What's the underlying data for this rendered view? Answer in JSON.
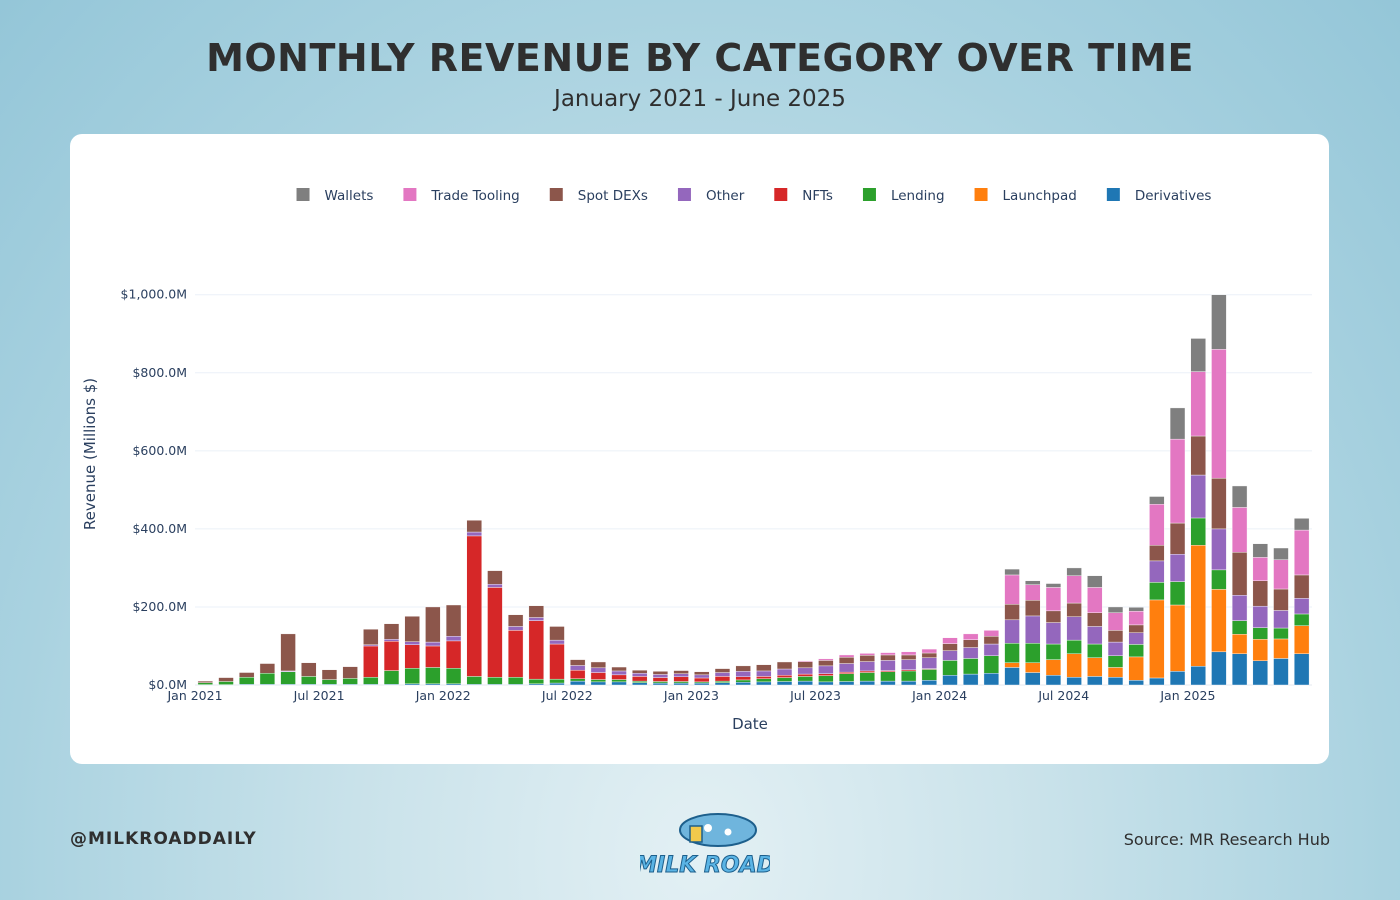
{
  "header": {
    "title": "MONTHLY REVENUE BY CATEGORY OVER TIME",
    "subtitle": "January 2021 - June 2025"
  },
  "footer": {
    "handle": "@MILKROADDAILY",
    "source": "Source: MR Research Hub",
    "logo_text": "MILK ROAD"
  },
  "chart_data": {
    "type": "bar",
    "stacked": true,
    "title": "",
    "xlabel": "Date",
    "ylabel": "Revenue (Millions $)",
    "ylim": [
      0,
      1130
    ],
    "y_ticks": [
      0,
      200,
      400,
      600,
      800,
      1000
    ],
    "y_tick_labels": [
      "$0.0M",
      "$200.0M",
      "$400.0M",
      "$600.0M",
      "$800.0M",
      "$1,000.0M"
    ],
    "x_tick_labels": [
      "Jan 2021",
      "Jul 2021",
      "Jan 2022",
      "Jul 2022",
      "Jan 2023",
      "Jul 2023",
      "Jan 2024",
      "Jul 2024",
      "Jan 2025"
    ],
    "x_tick_indices": [
      0,
      6,
      12,
      18,
      24,
      30,
      36,
      42,
      48
    ],
    "grid": true,
    "legend_position": "top",
    "categories": [
      "2021-01",
      "2021-02",
      "2021-03",
      "2021-04",
      "2021-05",
      "2021-06",
      "2021-07",
      "2021-08",
      "2021-09",
      "2021-10",
      "2021-11",
      "2021-12",
      "2022-01",
      "2022-02",
      "2022-03",
      "2022-04",
      "2022-05",
      "2022-06",
      "2022-07",
      "2022-08",
      "2022-09",
      "2022-10",
      "2022-11",
      "2022-12",
      "2023-01",
      "2023-02",
      "2023-03",
      "2023-04",
      "2023-05",
      "2023-06",
      "2023-07",
      "2023-08",
      "2023-09",
      "2023-10",
      "2023-11",
      "2023-12",
      "2024-01",
      "2024-02",
      "2024-03",
      "2024-04",
      "2024-05",
      "2024-06",
      "2024-07",
      "2024-08",
      "2024-09",
      "2024-10",
      "2024-11",
      "2024-12",
      "2025-01",
      "2025-02",
      "2025-03",
      "2025-04",
      "2025-05",
      "2025-06"
    ],
    "series": [
      {
        "name": "Derivatives",
        "color": "#1f77b4",
        "values": [
          1,
          1,
          2,
          2,
          2,
          2,
          2,
          2,
          2,
          2,
          3,
          3,
          3,
          2,
          2,
          2,
          3,
          5,
          10,
          8,
          8,
          6,
          5,
          5,
          5,
          6,
          7,
          8,
          9,
          10,
          8,
          9,
          10,
          10,
          10,
          12,
          25,
          28,
          30,
          45,
          32,
          25,
          20,
          22,
          20,
          12,
          18,
          35,
          48,
          85,
          80,
          62,
          68,
          80
        ]
      },
      {
        "name": "Launchpad",
        "color": "#ff7f0e",
        "values": [
          0,
          0,
          0,
          0,
          0,
          0,
          0,
          0,
          0,
          0,
          0,
          0,
          0,
          0,
          0,
          0,
          0,
          0,
          0,
          0,
          0,
          0,
          0,
          0,
          0,
          0,
          0,
          0,
          0,
          0,
          0,
          0,
          0,
          0,
          0,
          0,
          0,
          0,
          0,
          12,
          25,
          40,
          60,
          48,
          25,
          60,
          200,
          170,
          310,
          160,
          50,
          55,
          50,
          72
        ]
      },
      {
        "name": "Lending",
        "color": "#2ca02c",
        "values": [
          5,
          8,
          18,
          28,
          32,
          20,
          12,
          15,
          18,
          35,
          40,
          42,
          40,
          20,
          18,
          18,
          12,
          10,
          6,
          6,
          6,
          4,
          4,
          4,
          3,
          4,
          6,
          8,
          10,
          12,
          16,
          20,
          22,
          24,
          26,
          28,
          38,
          40,
          45,
          50,
          50,
          40,
          35,
          35,
          30,
          32,
          45,
          60,
          70,
          50,
          35,
          30,
          28,
          30
        ]
      },
      {
        "name": "NFTs",
        "color": "#d62728",
        "values": [
          0,
          0,
          0,
          0,
          0,
          0,
          0,
          0,
          80,
          75,
          60,
          55,
          70,
          360,
          230,
          120,
          150,
          90,
          22,
          18,
          12,
          12,
          10,
          12,
          10,
          12,
          8,
          6,
          6,
          6,
          5,
          4,
          4,
          3,
          3,
          2,
          0,
          0,
          0,
          0,
          0,
          0,
          0,
          0,
          0,
          0,
          0,
          0,
          0,
          0,
          0,
          0,
          0,
          0
        ]
      },
      {
        "name": "Other",
        "color": "#9467bd",
        "values": [
          0,
          0,
          0,
          0,
          2,
          0,
          0,
          0,
          3,
          5,
          8,
          10,
          12,
          10,
          8,
          10,
          8,
          10,
          12,
          12,
          10,
          8,
          8,
          8,
          8,
          10,
          14,
          14,
          16,
          16,
          20,
          22,
          24,
          26,
          26,
          28,
          25,
          28,
          30,
          60,
          70,
          55,
          60,
          45,
          35,
          30,
          55,
          70,
          110,
          105,
          65,
          55,
          45,
          40
        ]
      },
      {
        "name": "Spot DEXs",
        "color": "#8c564b",
        "values": [
          4,
          10,
          12,
          25,
          95,
          35,
          25,
          30,
          40,
          40,
          65,
          90,
          80,
          30,
          35,
          30,
          30,
          35,
          15,
          15,
          10,
          8,
          8,
          8,
          8,
          10,
          14,
          16,
          18,
          16,
          14,
          16,
          16,
          14,
          12,
          12,
          18,
          20,
          20,
          40,
          40,
          30,
          35,
          35,
          30,
          20,
          40,
          80,
          100,
          130,
          110,
          65,
          55,
          60
        ]
      },
      {
        "name": "Trade Tooling",
        "color": "#e377c2",
        "values": [
          0,
          0,
          0,
          0,
          0,
          0,
          0,
          0,
          0,
          0,
          0,
          0,
          0,
          0,
          0,
          0,
          0,
          0,
          0,
          0,
          0,
          0,
          0,
          0,
          0,
          0,
          0,
          0,
          0,
          2,
          4,
          6,
          5,
          6,
          8,
          10,
          15,
          15,
          15,
          75,
          40,
          60,
          70,
          65,
          45,
          35,
          105,
          215,
          165,
          330,
          115,
          60,
          75,
          115
        ]
      },
      {
        "name": "Wallets",
        "color": "#7f7f7f",
        "values": [
          0,
          0,
          0,
          0,
          0,
          0,
          0,
          0,
          0,
          0,
          0,
          0,
          0,
          0,
          0,
          0,
          0,
          0,
          0,
          0,
          0,
          0,
          0,
          0,
          0,
          0,
          0,
          0,
          0,
          0,
          0,
          0,
          0,
          0,
          0,
          0,
          0,
          0,
          0,
          15,
          10,
          10,
          20,
          30,
          15,
          10,
          20,
          80,
          85,
          140,
          55,
          35,
          30,
          30
        ]
      }
    ]
  }
}
